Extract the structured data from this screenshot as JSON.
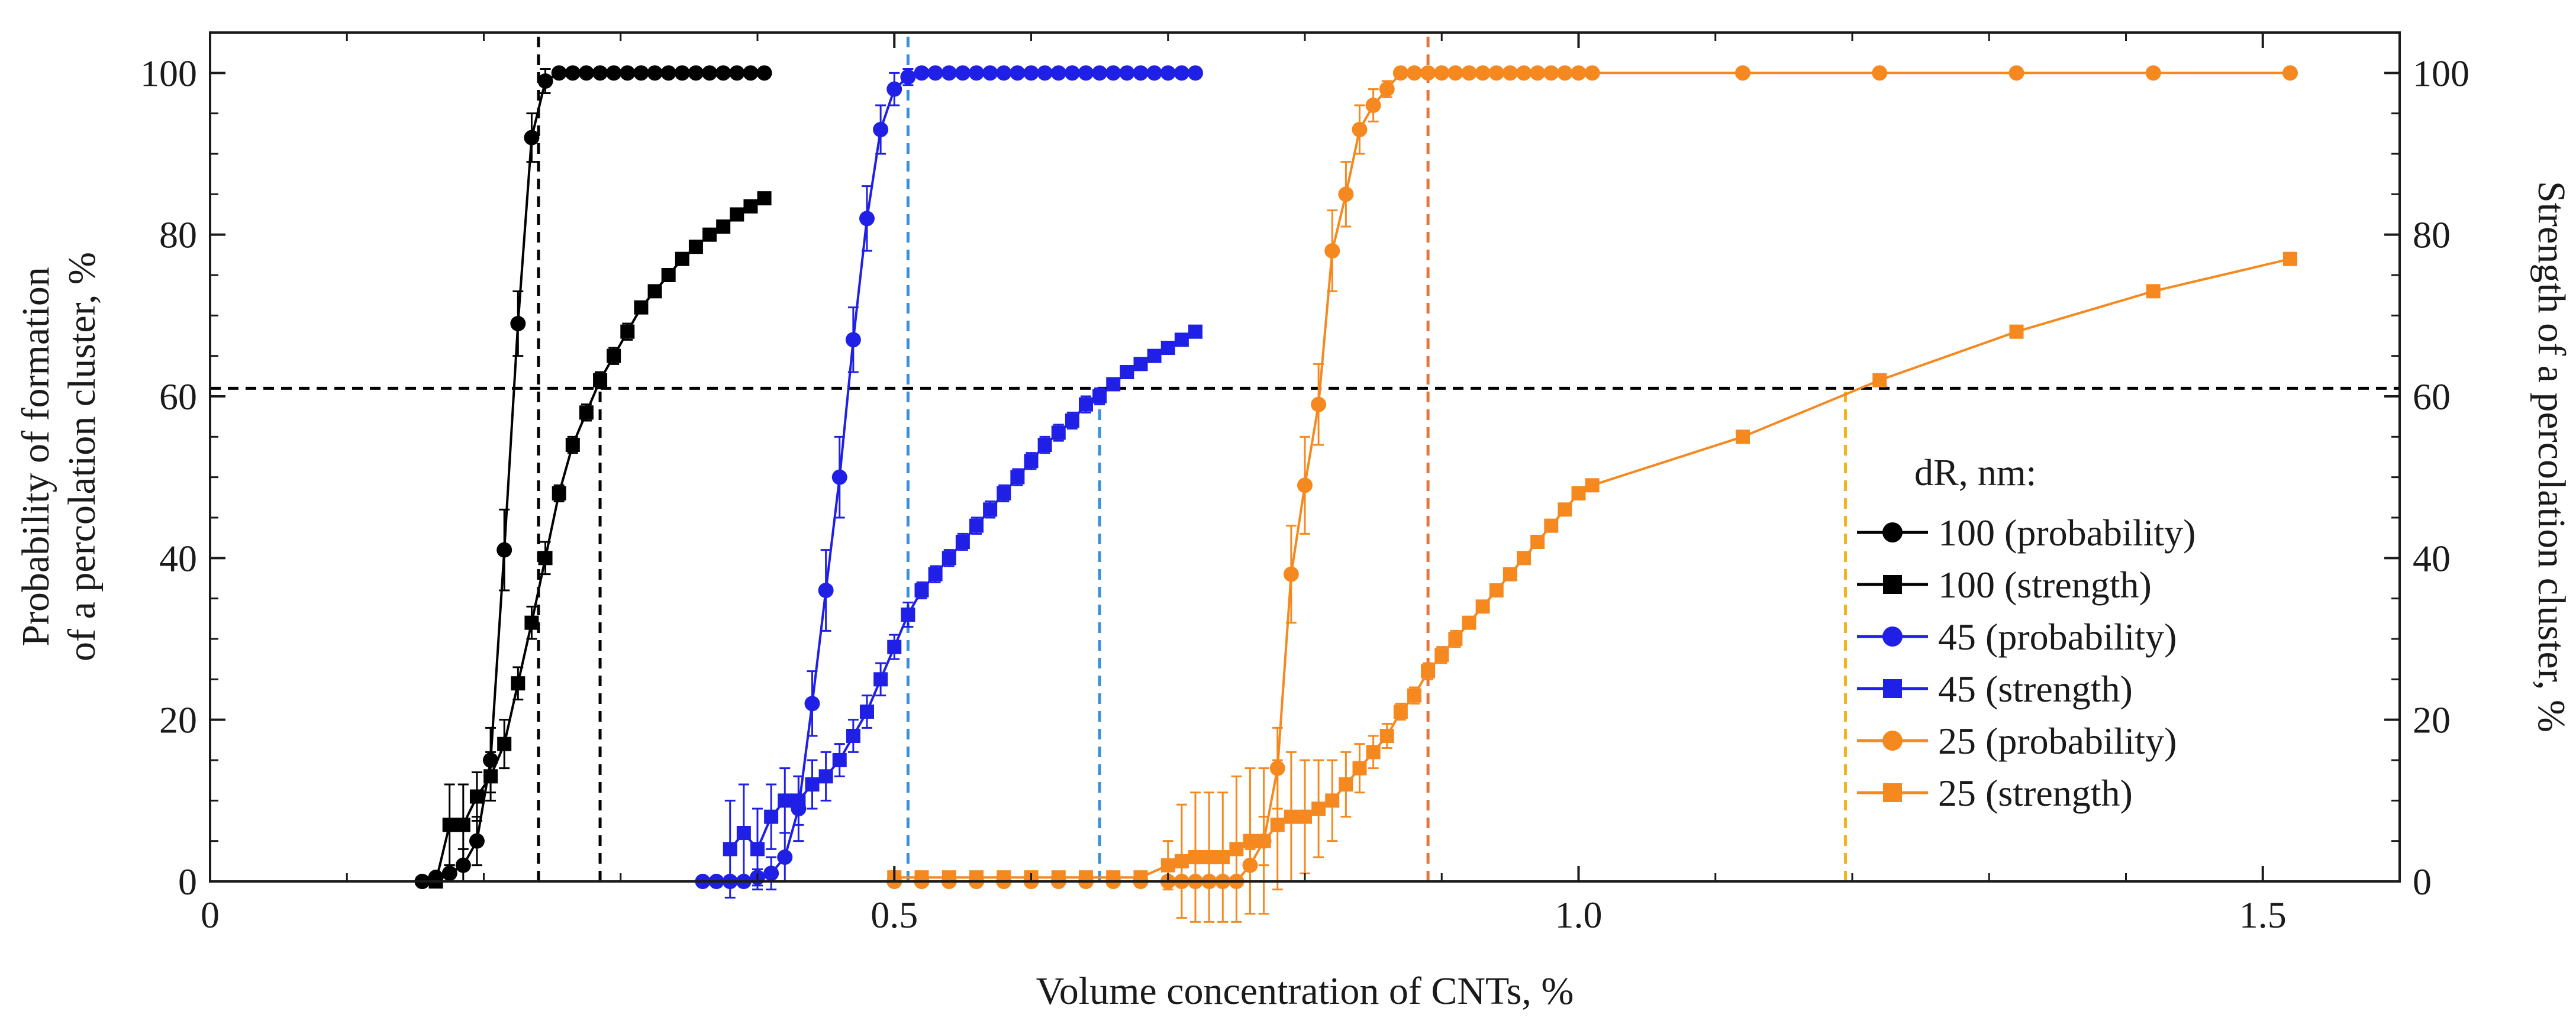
{
  "chart_data": {
    "type": "line",
    "xlabel": "Volume concentration of CNTs, %",
    "ylabel_left_lines": [
      "Probability of formation",
      "of a percolation cluster, %"
    ],
    "ylabel_right": "Strength of a percolation cluster, %",
    "xlim": [
      0,
      1.6
    ],
    "ylim": [
      0,
      105
    ],
    "x_ticks": [
      0,
      0.5,
      1.0,
      1.5
    ],
    "x_tick_labels": [
      "0",
      "0.5",
      "1.0",
      "1.5"
    ],
    "y_ticks": [
      0,
      20,
      40,
      60,
      80,
      100
    ],
    "y_tick_labels": [
      "0",
      "20",
      "40",
      "60",
      "80",
      "100"
    ],
    "legend_title": "dR, nm:",
    "legend_position": "lower-right",
    "series": [
      {
        "name": "100 (probability)",
        "color": "#000000",
        "marker": "circle",
        "x": [
          0.155,
          0.165,
          0.175,
          0.185,
          0.195,
          0.205,
          0.215,
          0.225,
          0.235,
          0.245,
          0.255,
          0.265,
          0.275,
          0.285,
          0.295,
          0.305,
          0.315,
          0.325,
          0.335,
          0.345,
          0.355,
          0.365,
          0.375,
          0.385,
          0.395,
          0.405
        ],
        "y": [
          0,
          0.5,
          1,
          2,
          5,
          15,
          41,
          69,
          92,
          99,
          100,
          100,
          100,
          100,
          100,
          100,
          100,
          100,
          100,
          100,
          100,
          100,
          100,
          100,
          100,
          100
        ],
        "err": [
          0,
          0,
          1,
          2,
          3,
          4,
          5,
          4,
          3,
          1.5,
          0,
          0,
          0,
          0,
          0,
          0,
          0,
          0,
          0,
          0,
          0,
          0,
          0,
          0,
          0,
          0
        ]
      },
      {
        "name": "100 (strength)",
        "color": "#000000",
        "marker": "square",
        "x": [
          0.165,
          0.175,
          0.185,
          0.195,
          0.205,
          0.215,
          0.225,
          0.235,
          0.245,
          0.255,
          0.265,
          0.275,
          0.285,
          0.295,
          0.305,
          0.315,
          0.325,
          0.335,
          0.345,
          0.355,
          0.365,
          0.375,
          0.385,
          0.395,
          0.405
        ],
        "y": [
          0,
          7,
          7,
          10.5,
          13,
          17,
          24.5,
          32,
          40,
          48,
          54,
          58,
          62,
          65,
          68,
          71,
          73,
          75,
          77,
          78.5,
          80,
          81,
          82.5,
          83.5,
          84.5
        ],
        "err": [
          0,
          5,
          5,
          3,
          3,
          3,
          2,
          2,
          2,
          1,
          1,
          1,
          1,
          1,
          1,
          0.5,
          0.5,
          0.5,
          0.5,
          0.5,
          0.5,
          0.5,
          0.5,
          0.5,
          0.5
        ]
      },
      {
        "name": "45 (probability)",
        "color": "#1f1fe6",
        "marker": "circle",
        "x": [
          0.36,
          0.37,
          0.38,
          0.39,
          0.4,
          0.41,
          0.42,
          0.43,
          0.44,
          0.45,
          0.46,
          0.47,
          0.48,
          0.49,
          0.5,
          0.51,
          0.52,
          0.53,
          0.54,
          0.55,
          0.56,
          0.57,
          0.58,
          0.59,
          0.6,
          0.61,
          0.62,
          0.63,
          0.64,
          0.65,
          0.66,
          0.67,
          0.68,
          0.69,
          0.7,
          0.71,
          0.72
        ],
        "y": [
          0,
          0,
          0,
          0,
          0.5,
          1,
          3,
          9,
          22,
          36,
          50,
          67,
          82,
          93,
          98,
          99.5,
          100,
          100,
          100,
          100,
          100,
          100,
          100,
          100,
          100,
          100,
          100,
          100,
          100,
          100,
          100,
          100,
          100,
          100,
          100,
          100,
          100
        ],
        "err": [
          0,
          0,
          0,
          0,
          1,
          2,
          3,
          4,
          4,
          5,
          5,
          4,
          4,
          3,
          2,
          1,
          0,
          0,
          0,
          0,
          0,
          0,
          0,
          0,
          0,
          0,
          0,
          0,
          0,
          0,
          0,
          0,
          0,
          0,
          0,
          0,
          0
        ]
      },
      {
        "name": "45 (strength)",
        "color": "#1f1fe6",
        "marker": "square",
        "x": [
          0.38,
          0.39,
          0.4,
          0.41,
          0.42,
          0.43,
          0.44,
          0.45,
          0.46,
          0.47,
          0.48,
          0.49,
          0.5,
          0.51,
          0.52,
          0.53,
          0.54,
          0.55,
          0.56,
          0.57,
          0.58,
          0.59,
          0.6,
          0.61,
          0.62,
          0.63,
          0.64,
          0.65,
          0.66,
          0.67,
          0.68,
          0.69,
          0.7,
          0.71,
          0.72
        ],
        "y": [
          4,
          6,
          4,
          8,
          10,
          10,
          12,
          13,
          15,
          18,
          21,
          25,
          29,
          33,
          36,
          38,
          40,
          42,
          44,
          46,
          48,
          50,
          52,
          54,
          55.5,
          57,
          59,
          60,
          61.5,
          63,
          64,
          65,
          66,
          67,
          68
        ],
        "err": [
          6,
          6,
          5,
          4,
          4,
          3,
          3,
          3,
          2,
          2,
          2,
          2,
          1.5,
          1.5,
          1,
          1,
          1,
          1,
          1,
          1,
          1,
          1,
          1,
          1,
          1,
          1,
          1,
          1,
          0.5,
          0.5,
          0.5,
          0.5,
          0.5,
          0.5,
          0.5
        ]
      },
      {
        "name": "25 (probability)",
        "color": "#f5891f",
        "marker": "circle",
        "x": [
          0.5,
          0.52,
          0.54,
          0.56,
          0.58,
          0.6,
          0.62,
          0.64,
          0.66,
          0.68,
          0.7,
          0.71,
          0.72,
          0.73,
          0.74,
          0.75,
          0.76,
          0.77,
          0.78,
          0.79,
          0.8,
          0.81,
          0.82,
          0.83,
          0.84,
          0.85,
          0.86,
          0.87,
          0.88,
          0.89,
          0.9,
          0.91,
          0.92,
          0.93,
          0.94,
          0.95,
          0.96,
          0.97,
          0.98,
          0.99,
          1.0,
          1.01,
          1.12,
          1.22,
          1.32,
          1.42,
          1.52
        ],
        "y": [
          0,
          0,
          0,
          0,
          0,
          0,
          0,
          0,
          0,
          0,
          0,
          0,
          0,
          0,
          0,
          0,
          2,
          5,
          14,
          38,
          49,
          59,
          78,
          85,
          93,
          96,
          98,
          100,
          100,
          100,
          100,
          100,
          100,
          100,
          100,
          100,
          100,
          100,
          100,
          100,
          100,
          100,
          100,
          100,
          100,
          100,
          100
        ],
        "err": [
          0,
          0,
          0,
          0,
          0,
          0,
          0,
          0,
          0,
          0,
          0,
          0,
          0,
          0,
          0,
          0,
          2,
          3,
          5,
          6,
          6,
          5,
          5,
          4,
          3,
          2,
          1,
          0,
          0,
          0,
          0,
          0,
          0,
          0,
          0,
          0,
          0,
          0,
          0,
          0,
          0,
          0,
          0,
          0,
          0,
          0,
          0
        ]
      },
      {
        "name": "25 (strength)",
        "color": "#f5891f",
        "marker": "square",
        "x": [
          0.5,
          0.52,
          0.54,
          0.56,
          0.58,
          0.6,
          0.62,
          0.64,
          0.66,
          0.68,
          0.7,
          0.71,
          0.72,
          0.73,
          0.74,
          0.75,
          0.76,
          0.77,
          0.78,
          0.79,
          0.8,
          0.81,
          0.82,
          0.83,
          0.84,
          0.85,
          0.86,
          0.87,
          0.88,
          0.89,
          0.9,
          0.91,
          0.92,
          0.93,
          0.94,
          0.95,
          0.96,
          0.97,
          0.98,
          0.99,
          1.0,
          1.01,
          1.12,
          1.22,
          1.32,
          1.42,
          1.52
        ],
        "y": [
          0.5,
          0.5,
          0.5,
          0.5,
          0.5,
          0.5,
          0.5,
          0.5,
          0.5,
          0.5,
          2,
          2.5,
          3,
          3,
          3,
          4,
          5,
          5,
          7,
          8,
          8,
          9,
          10,
          12,
          14,
          16,
          18,
          21,
          23,
          26,
          28,
          30,
          32,
          34,
          36,
          38,
          40,
          42,
          44,
          46,
          48,
          49,
          55,
          62,
          68,
          73,
          77
        ],
        "err": [
          0,
          0,
          0,
          0,
          0,
          0,
          0,
          0,
          0,
          0,
          3,
          7,
          8,
          8,
          8,
          9,
          9,
          9,
          8,
          8,
          7,
          6,
          5,
          4,
          3,
          2,
          1.5,
          1,
          1,
          1,
          1,
          1,
          0.5,
          0.5,
          0.5,
          0.5,
          0.5,
          0.5,
          0.5,
          0.5,
          0.5,
          0.5,
          0.5,
          0.5,
          0.5,
          0.5,
          0.5
        ]
      }
    ],
    "reference_lines": [
      {
        "kind": "h",
        "y": 61,
        "x_from": 0,
        "x_to": 1.6,
        "color": "#000000"
      },
      {
        "kind": "v",
        "x": 0.24,
        "y_from": 0,
        "y_to": 105,
        "color": "#000000"
      },
      {
        "kind": "v",
        "x": 0.285,
        "y_from": 0,
        "y_to": 61,
        "color": "#000000"
      },
      {
        "kind": "v",
        "x": 0.51,
        "y_from": 0,
        "y_to": 105,
        "color": "#3a8fd8"
      },
      {
        "kind": "v",
        "x": 0.65,
        "y_from": 0,
        "y_to": 61,
        "color": "#3a8fd8"
      },
      {
        "kind": "v",
        "x": 0.89,
        "y_from": 0,
        "y_to": 105,
        "color": "#e8743b"
      },
      {
        "kind": "v",
        "x": 1.195,
        "y_from": 0,
        "y_to": 61,
        "color": "#f2b21b"
      }
    ]
  }
}
